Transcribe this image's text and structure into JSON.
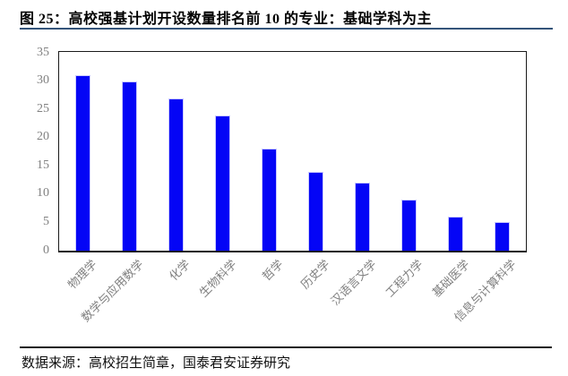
{
  "page": {
    "title": "图 25：高校强基计划开设数量排名前 10 的专业：基础学科为主",
    "source_note": "数据来源：高校招生简章，国泰君安证券研究"
  },
  "colors": {
    "bar_fill": "#0405f6",
    "bar_edge": "#c9c9ff",
    "title_underline": "#34547a",
    "axis_line": "#1a1a1a",
    "y_tick_label": "#808080",
    "x_tick_label": "#7f7f7f",
    "footer_rule": "#1a1a1a",
    "title_text": "#000000"
  },
  "chart_data": {
    "type": "bar",
    "title": "高校强基计划开设数量排名前 10 的专业：基础学科为主",
    "categories": [
      "物理学",
      "数学与应用数学",
      "化学",
      "生物科学",
      "哲学",
      "历史学",
      "汉语言文学",
      "工程力学",
      "基础医学",
      "信息与计算科学"
    ],
    "values": [
      31,
      30,
      27,
      24,
      18,
      14,
      12,
      9,
      6,
      5
    ],
    "xlabel": "",
    "ylabel": "",
    "ylim": [
      0,
      35
    ],
    "yticks": [
      0,
      5,
      10,
      15,
      20,
      25,
      30,
      35
    ],
    "grid": false,
    "legend": "none",
    "bar_color": "#0405f6"
  }
}
